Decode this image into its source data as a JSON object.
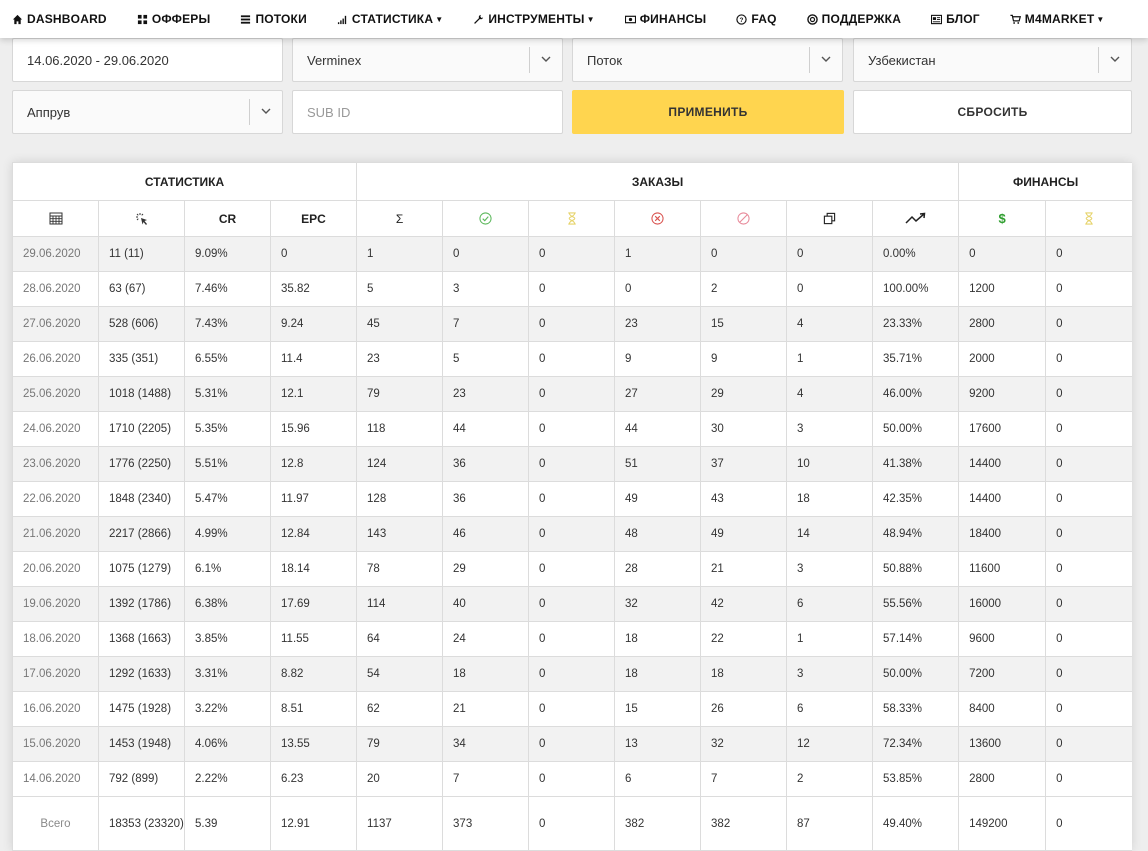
{
  "nav": [
    {
      "label": "DASHBOARD",
      "icon": "home-icon"
    },
    {
      "label": "ОФФЕРЫ",
      "icon": "grid-icon"
    },
    {
      "label": "ПОТОКИ",
      "icon": "list-icon"
    },
    {
      "label": "СТАТИСТИКА",
      "icon": "signal-icon",
      "caret": true
    },
    {
      "label": "ИНСТРУМЕНТЫ",
      "icon": "wrench-icon",
      "caret": true
    },
    {
      "label": "ФИНАНСЫ",
      "icon": "money-icon"
    },
    {
      "label": "FAQ",
      "icon": "question-icon"
    },
    {
      "label": "ПОДДЕРЖКА",
      "icon": "lifebuoy-icon"
    },
    {
      "label": "БЛОГ",
      "icon": "newspaper-icon"
    },
    {
      "label": "M4MARKET",
      "icon": "cart-icon",
      "caret": true
    }
  ],
  "filters": {
    "date_range": "14.06.2020 - 29.06.2020",
    "offer": "Verminex",
    "stream": "Поток",
    "country": "Узбекистан",
    "status": "Аппрув",
    "subid_placeholder": "SUB ID",
    "apply_label": "ПРИМЕНИТЬ",
    "reset_label": "СБРОСИТЬ"
  },
  "table": {
    "groups": [
      "СТАТИСТИКА",
      "ЗАКАЗЫ",
      "ФИНАНСЫ"
    ],
    "columns": [
      {
        "label": "",
        "icon": "calendar-icon"
      },
      {
        "label": "",
        "icon": "click-icon"
      },
      {
        "label": "CR",
        "icon": ""
      },
      {
        "label": "EPC",
        "icon": ""
      },
      {
        "label": "Σ",
        "icon": "sum-icon"
      },
      {
        "label": "",
        "icon": "check-circle-icon"
      },
      {
        "label": "",
        "icon": "hourglass-icon"
      },
      {
        "label": "",
        "icon": "x-circle-icon"
      },
      {
        "label": "",
        "icon": "ban-icon"
      },
      {
        "label": "",
        "icon": "copy-icon"
      },
      {
        "label": "",
        "icon": "trend-up-icon"
      },
      {
        "label": "$",
        "icon": "dollar-icon"
      },
      {
        "label": "",
        "icon": "hourglass-icon"
      }
    ],
    "rows": [
      [
        "29.06.2020",
        "11 (11)",
        "9.09%",
        "0",
        "1",
        "0",
        "0",
        "1",
        "0",
        "0",
        "0.00%",
        "0",
        "0"
      ],
      [
        "28.06.2020",
        "63 (67)",
        "7.46%",
        "35.82",
        "5",
        "3",
        "0",
        "0",
        "2",
        "0",
        "100.00%",
        "1200",
        "0"
      ],
      [
        "27.06.2020",
        "528 (606)",
        "7.43%",
        "9.24",
        "45",
        "7",
        "0",
        "23",
        "15",
        "4",
        "23.33%",
        "2800",
        "0"
      ],
      [
        "26.06.2020",
        "335 (351)",
        "6.55%",
        "11.4",
        "23",
        "5",
        "0",
        "9",
        "9",
        "1",
        "35.71%",
        "2000",
        "0"
      ],
      [
        "25.06.2020",
        "1018 (1488)",
        "5.31%",
        "12.1",
        "79",
        "23",
        "0",
        "27",
        "29",
        "4",
        "46.00%",
        "9200",
        "0"
      ],
      [
        "24.06.2020",
        "1710 (2205)",
        "5.35%",
        "15.96",
        "118",
        "44",
        "0",
        "44",
        "30",
        "3",
        "50.00%",
        "17600",
        "0"
      ],
      [
        "23.06.2020",
        "1776 (2250)",
        "5.51%",
        "12.8",
        "124",
        "36",
        "0",
        "51",
        "37",
        "10",
        "41.38%",
        "14400",
        "0"
      ],
      [
        "22.06.2020",
        "1848 (2340)",
        "5.47%",
        "11.97",
        "128",
        "36",
        "0",
        "49",
        "43",
        "18",
        "42.35%",
        "14400",
        "0"
      ],
      [
        "21.06.2020",
        "2217 (2866)",
        "4.99%",
        "12.84",
        "143",
        "46",
        "0",
        "48",
        "49",
        "14",
        "48.94%",
        "18400",
        "0"
      ],
      [
        "20.06.2020",
        "1075 (1279)",
        "6.1%",
        "18.14",
        "78",
        "29",
        "0",
        "28",
        "21",
        "3",
        "50.88%",
        "11600",
        "0"
      ],
      [
        "19.06.2020",
        "1392 (1786)",
        "6.38%",
        "17.69",
        "114",
        "40",
        "0",
        "32",
        "42",
        "6",
        "55.56%",
        "16000",
        "0"
      ],
      [
        "18.06.2020",
        "1368 (1663)",
        "3.85%",
        "11.55",
        "64",
        "24",
        "0",
        "18",
        "22",
        "1",
        "57.14%",
        "9600",
        "0"
      ],
      [
        "17.06.2020",
        "1292 (1633)",
        "3.31%",
        "8.82",
        "54",
        "18",
        "0",
        "18",
        "18",
        "3",
        "50.00%",
        "7200",
        "0"
      ],
      [
        "16.06.2020",
        "1475 (1928)",
        "3.22%",
        "8.51",
        "62",
        "21",
        "0",
        "15",
        "26",
        "6",
        "58.33%",
        "8400",
        "0"
      ],
      [
        "15.06.2020",
        "1453 (1948)",
        "4.06%",
        "13.55",
        "79",
        "34",
        "0",
        "13",
        "32",
        "12",
        "72.34%",
        "13600",
        "0"
      ],
      [
        "14.06.2020",
        "792 (899)",
        "2.22%",
        "6.23",
        "20",
        "7",
        "0",
        "6",
        "7",
        "2",
        "53.85%",
        "2800",
        "0"
      ]
    ],
    "total": [
      "Всего",
      "18353 (23320)",
      "5.39",
      "12.91",
      "1137",
      "373",
      "0",
      "382",
      "382",
      "87",
      "49.40%",
      "149200",
      "0"
    ]
  },
  "colors": {
    "accent": "#ffd54f",
    "approved": "#5cb85c",
    "rejected": "#d9534f",
    "trash": "#e88a9a",
    "pending": "#e6d36a",
    "money": "#2e9e2e"
  }
}
